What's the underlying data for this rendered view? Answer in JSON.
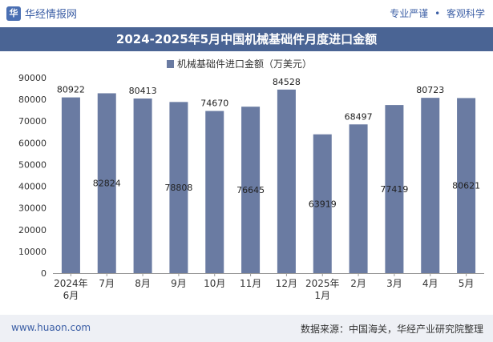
{
  "header": {
    "brand_name": "华经情报网",
    "logo_icon": "huajing-logo-icon",
    "tagline_left": "专业严谨",
    "tagline_sep": "•",
    "tagline_right": "客观科学"
  },
  "footer": {
    "site": "www.huaon.com",
    "source": "数据来源：中国海关，华经产业研究院整理"
  },
  "chart_data": {
    "type": "bar",
    "title": "2024-2025年5月中国机械基础件月度进口金额",
    "legend": "机械基础件进口金额（万美元）",
    "legend_position": "top",
    "categories": [
      "2024年\n6月",
      "7月",
      "8月",
      "9月",
      "10月",
      "11月",
      "12月",
      "2025年\n1月",
      "2月",
      "3月",
      "4月",
      "5月"
    ],
    "values": [
      80922,
      82824,
      80413,
      78808,
      74670,
      76645,
      84528,
      63919,
      68497,
      77419,
      80723,
      80621
    ],
    "label_inside": [
      false,
      true,
      false,
      true,
      false,
      true,
      false,
      true,
      false,
      true,
      false,
      true
    ],
    "ylim": [
      0,
      90000
    ],
    "yticks": [
      0,
      10000,
      20000,
      30000,
      40000,
      50000,
      60000,
      70000,
      80000,
      90000
    ],
    "grid": false,
    "bar_color": "#6a7ba2"
  }
}
